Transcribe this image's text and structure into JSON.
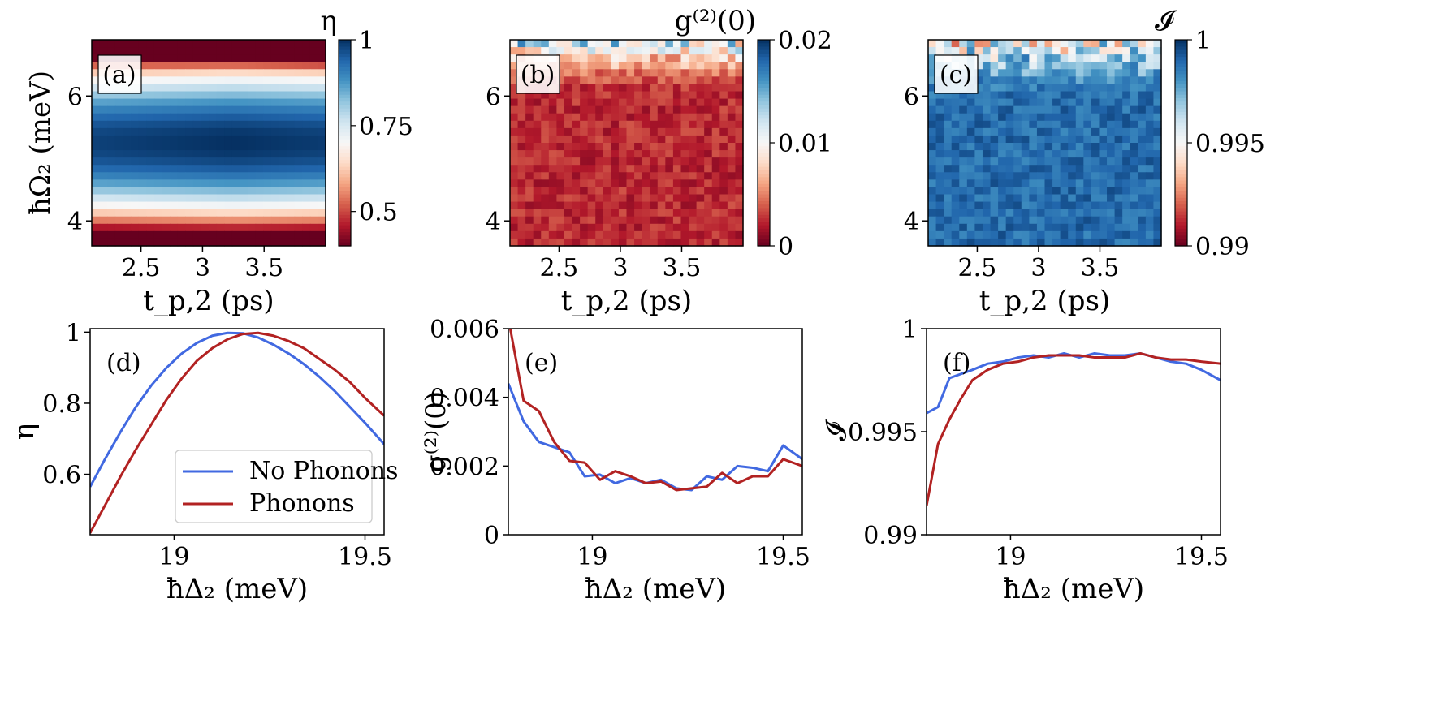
{
  "chart_data": [
    {
      "id": "a",
      "type": "heatmap",
      "panel_label": "(a)",
      "colorbar_title": "η",
      "xlabel": "t_p,2 (ps)",
      "ylabel": "ħΩ₂ (meV)",
      "xlim": [
        2.1,
        4.0
      ],
      "ylim": [
        3.6,
        6.9
      ],
      "xticks": [
        {
          "v": 2.5,
          "t": "2.5"
        },
        {
          "v": 3,
          "t": "3"
        },
        {
          "v": 3.5,
          "t": "3.5"
        }
      ],
      "yticks": [
        {
          "v": 4,
          "t": "4"
        },
        {
          "v": 6,
          "t": "6"
        }
      ],
      "nx": 30,
      "ny": 28,
      "crange": [
        0.4,
        1.0
      ],
      "cticks": [
        {
          "v": 0.5,
          "t": "0.5"
        },
        {
          "v": 0.75,
          "t": "0.75"
        },
        {
          "v": 1,
          "t": "1"
        }
      ],
      "field": {
        "kind": "eta"
      }
    },
    {
      "id": "b",
      "type": "heatmap",
      "panel_label": "(b)",
      "colorbar_title": "g⁽²⁾(0)",
      "xlabel": "t_p,2 (ps)",
      "ylabel": "",
      "xlim": [
        2.1,
        4.0
      ],
      "ylim": [
        3.6,
        6.9
      ],
      "xticks": [
        {
          "v": 2.5,
          "t": "2.5"
        },
        {
          "v": 3,
          "t": "3"
        },
        {
          "v": 3.5,
          "t": "3.5"
        }
      ],
      "yticks": [
        {
          "v": 4,
          "t": "4"
        },
        {
          "v": 6,
          "t": "6"
        }
      ],
      "nx": 30,
      "ny": 28,
      "crange": [
        0,
        0.02
      ],
      "cticks": [
        {
          "v": 0,
          "t": "0"
        },
        {
          "v": 0.01,
          "t": "0.01"
        },
        {
          "v": 0.02,
          "t": "0.02"
        }
      ],
      "field": {
        "kind": "g2"
      }
    },
    {
      "id": "c",
      "type": "heatmap",
      "panel_label": "(c)",
      "colorbar_title": "𝓘",
      "xlabel": "t_p,2 (ps)",
      "ylabel": "",
      "xlim": [
        2.1,
        4.0
      ],
      "ylim": [
        3.6,
        6.9
      ],
      "xticks": [
        {
          "v": 2.5,
          "t": "2.5"
        },
        {
          "v": 3,
          "t": "3"
        },
        {
          "v": 3.5,
          "t": "3.5"
        }
      ],
      "yticks": [
        {
          "v": 4,
          "t": "4"
        },
        {
          "v": 6,
          "t": "6"
        }
      ],
      "nx": 30,
      "ny": 28,
      "crange": [
        0.99,
        1.0
      ],
      "cticks": [
        {
          "v": 0.99,
          "t": "0.99"
        },
        {
          "v": 0.995,
          "t": "0.995"
        },
        {
          "v": 1,
          "t": "1"
        }
      ],
      "field": {
        "kind": "ind"
      }
    },
    {
      "id": "d",
      "type": "line",
      "panel_label": "(d)",
      "xlabel": "ħΔ₂ (meV)",
      "ylabel": "η",
      "xlim": [
        18.78,
        19.55
      ],
      "ylim": [
        0.43,
        1.01
      ],
      "xticks": [
        {
          "v": 19,
          "t": "19"
        },
        {
          "v": 19.5,
          "t": "19.5"
        }
      ],
      "yticks": [
        {
          "v": 0.6,
          "t": "0.6"
        },
        {
          "v": 0.8,
          "t": "0.8"
        },
        {
          "v": 1,
          "t": "1"
        }
      ],
      "legend": {
        "position": "lower-right",
        "entries": [
          "No Phonons",
          "Phonons"
        ]
      },
      "x": [
        18.78,
        18.82,
        18.86,
        18.9,
        18.94,
        18.98,
        19.02,
        19.06,
        19.1,
        19.14,
        19.18,
        19.22,
        19.26,
        19.3,
        19.34,
        19.38,
        19.42,
        19.46,
        19.5,
        19.55
      ],
      "series": [
        {
          "name": "No Phonons",
          "color": "#4169e1",
          "values": [
            0.565,
            0.645,
            0.72,
            0.79,
            0.85,
            0.9,
            0.94,
            0.97,
            0.99,
            0.998,
            0.997,
            0.985,
            0.965,
            0.94,
            0.91,
            0.875,
            0.835,
            0.79,
            0.745,
            0.685
          ]
        },
        {
          "name": "Phonons",
          "color": "#b22222",
          "values": [
            0.435,
            0.515,
            0.595,
            0.67,
            0.74,
            0.81,
            0.87,
            0.92,
            0.955,
            0.98,
            0.995,
            0.998,
            0.99,
            0.975,
            0.955,
            0.925,
            0.895,
            0.86,
            0.815,
            0.765
          ]
        }
      ]
    },
    {
      "id": "e",
      "type": "line",
      "panel_label": "(e)",
      "xlabel": "ħΔ₂ (meV)",
      "ylabel": "g⁽²⁾(0)",
      "xlim": [
        18.78,
        19.55
      ],
      "ylim": [
        0,
        0.006
      ],
      "xticks": [
        {
          "v": 19,
          "t": "19"
        },
        {
          "v": 19.5,
          "t": "19.5"
        }
      ],
      "yticks": [
        {
          "v": 0,
          "t": "0"
        },
        {
          "v": 0.002,
          "t": "0.002"
        },
        {
          "v": 0.004,
          "t": "0.004"
        },
        {
          "v": 0.006,
          "t": "0.006"
        }
      ],
      "x": [
        18.78,
        18.82,
        18.86,
        18.9,
        18.94,
        18.98,
        19.02,
        19.06,
        19.1,
        19.14,
        19.18,
        19.22,
        19.26,
        19.3,
        19.34,
        19.38,
        19.42,
        19.46,
        19.5,
        19.55
      ],
      "series": [
        {
          "name": "No Phonons",
          "color": "#4169e1",
          "values": [
            0.0044,
            0.0033,
            0.0027,
            0.00255,
            0.0024,
            0.0017,
            0.00175,
            0.0015,
            0.00165,
            0.0015,
            0.0016,
            0.00135,
            0.0013,
            0.0017,
            0.0016,
            0.002,
            0.00195,
            0.00185,
            0.0026,
            0.0022
          ]
        },
        {
          "name": "Phonons",
          "color": "#b22222",
          "values": [
            0.0063,
            0.0039,
            0.0036,
            0.0027,
            0.00215,
            0.0021,
            0.0016,
            0.00185,
            0.0017,
            0.0015,
            0.00155,
            0.0013,
            0.00135,
            0.0014,
            0.0018,
            0.0015,
            0.0017,
            0.0017,
            0.0022,
            0.002
          ]
        }
      ]
    },
    {
      "id": "f",
      "type": "line",
      "panel_label": "(f)",
      "xlabel": "ħΔ₂ (meV)",
      "ylabel": "𝓘",
      "xlim": [
        18.78,
        19.55
      ],
      "ylim": [
        0.99,
        1.0
      ],
      "xticks": [
        {
          "v": 19,
          "t": "19"
        },
        {
          "v": 19.5,
          "t": "19.5"
        }
      ],
      "yticks": [
        {
          "v": 0.99,
          "t": "0.99"
        },
        {
          "v": 0.995,
          "t": "0.995"
        },
        {
          "v": 1,
          "t": "1"
        }
      ],
      "x": [
        18.78,
        18.81,
        18.84,
        18.87,
        18.9,
        18.94,
        18.98,
        19.02,
        19.06,
        19.1,
        19.14,
        19.18,
        19.22,
        19.26,
        19.3,
        19.34,
        19.38,
        19.42,
        19.46,
        19.5,
        19.55
      ],
      "series": [
        {
          "name": "No Phonons",
          "color": "#4169e1",
          "values": [
            0.9959,
            0.9962,
            0.9976,
            0.9978,
            0.998,
            0.9983,
            0.9984,
            0.9986,
            0.9987,
            0.9986,
            0.9988,
            0.9986,
            0.9988,
            0.9987,
            0.9987,
            0.9988,
            0.9986,
            0.9984,
            0.9983,
            0.998,
            0.9975
          ]
        },
        {
          "name": "Phonons",
          "color": "#b22222",
          "values": [
            0.9914,
            0.9944,
            0.9956,
            0.9966,
            0.9975,
            0.998,
            0.9983,
            0.9984,
            0.9986,
            0.9987,
            0.9987,
            0.9987,
            0.9986,
            0.9986,
            0.9986,
            0.9988,
            0.9986,
            0.9985,
            0.9985,
            0.9984,
            0.9983
          ]
        }
      ]
    }
  ]
}
